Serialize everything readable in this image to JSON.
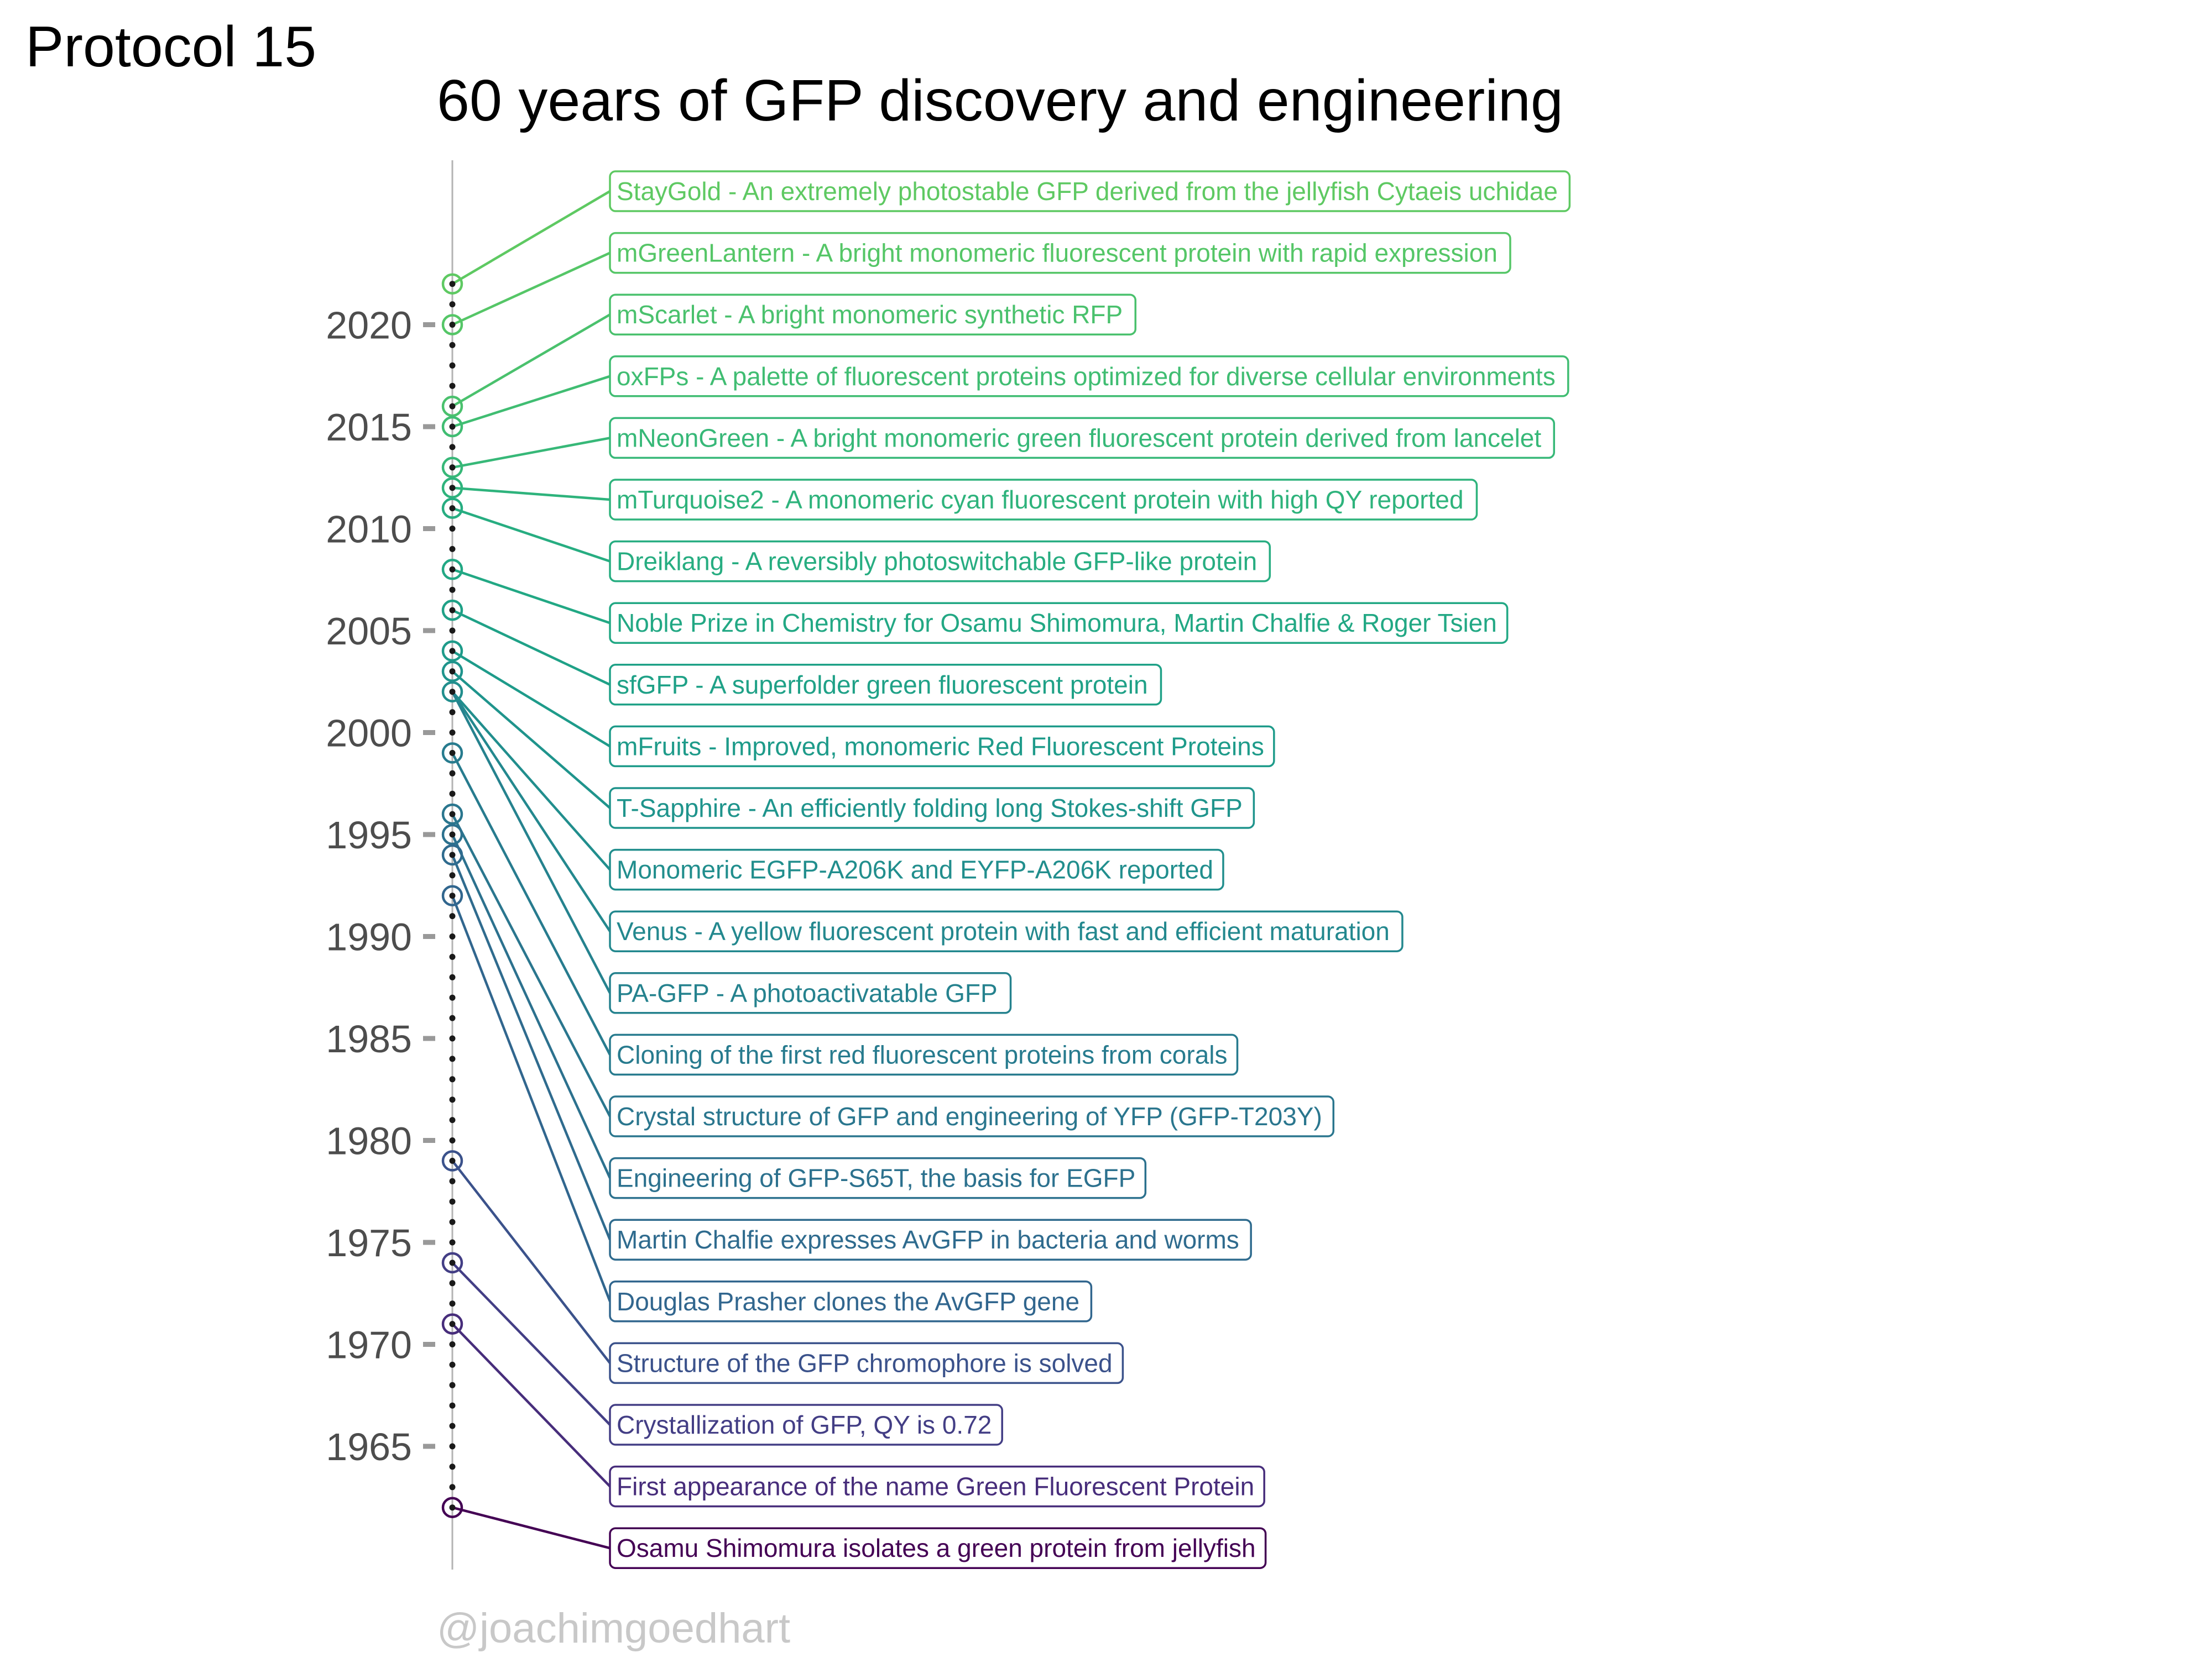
{
  "protocol_label": "Protocol 15",
  "watermark": "@joachimgoedhart",
  "chart_data": {
    "type": "timeline",
    "title": "60 years of GFP discovery and engineering",
    "xlabel": "",
    "ylabel": "",
    "ylim": [
      1960,
      2024
    ],
    "y_ticks": [
      1965,
      1970,
      1975,
      1980,
      1985,
      1990,
      1995,
      2000,
      2005,
      2010,
      2015,
      2020
    ],
    "grid": false,
    "events": [
      {
        "year": 2022,
        "label": "StayGold - An extremely photostable GFP derived from the jellyfish Cytaeis uchidae",
        "color": "#5ec962"
      },
      {
        "year": 2020,
        "label": "mGreenLantern - A bright monomeric fluorescent protein with rapid expression",
        "color": "#55c667"
      },
      {
        "year": 2016,
        "label": "mScarlet - A bright monomeric synthetic RFP",
        "color": "#4ac16d"
      },
      {
        "year": 2015,
        "label": "oxFPs - A palette of fluorescent proteins optimized for diverse cellular environments",
        "color": "#40bd72"
      },
      {
        "year": 2013,
        "label": "mNeonGreen - A bright monomeric green fluorescent protein derived from lancelet",
        "color": "#37b878"
      },
      {
        "year": 2012,
        "label": "mTurquoise2 - A monomeric cyan fluorescent protein with high QY reported",
        "color": "#2eb37c"
      },
      {
        "year": 2011,
        "label": "Dreiklang - A reversibly photoswitchable GFP-like protein",
        "color": "#27ad81"
      },
      {
        "year": 2008,
        "label": "Noble Prize in Chemistry for Osamu Shimomura, Martin Chalfie & Roger Tsien",
        "color": "#22a884"
      },
      {
        "year": 2006,
        "label": "sfGFP - A superfolder green fluorescent protein",
        "color": "#1fa187"
      },
      {
        "year": 2004,
        "label": "mFruits - Improved, monomeric Red Fluorescent Proteins",
        "color": "#1e9b8a"
      },
      {
        "year": 2003,
        "label": "T-Sapphire - An efficiently folding long Stokes-shift GFP",
        "color": "#1f948c"
      },
      {
        "year": 2002,
        "label": "Monomeric EGFP-A206K and EYFP-A206K reported",
        "color": "#218e8d"
      },
      {
        "year": 2002,
        "label": "Venus - A yellow fluorescent protein with fast and efficient maturation",
        "color": "#23888e"
      },
      {
        "year": 2002,
        "label": "PA-GFP - A photoactivatable GFP",
        "color": "#25828e"
      },
      {
        "year": 1999,
        "label": "Cloning of the first red fluorescent proteins from corals",
        "color": "#277b8e"
      },
      {
        "year": 1996,
        "label": "Crystal structure of GFP and engineering of YFP (GFP-T203Y)",
        "color": "#2a768e"
      },
      {
        "year": 1995,
        "label": "Engineering of GFP-S65T, the basis for EGFP",
        "color": "#2c718e"
      },
      {
        "year": 1994,
        "label": "Martin Chalfie expresses AvGFP in bacteria and worms",
        "color": "#2f6b8e"
      },
      {
        "year": 1992,
        "label": "Douglas Prasher clones the AvGFP gene",
        "color": "#31668e"
      },
      {
        "year": 1979,
        "label": "Structure of the GFP chromophore is solved",
        "color": "#3b528b"
      },
      {
        "year": 1974,
        "label": "Crystallization of GFP, QY is 0.72",
        "color": "#433e85"
      },
      {
        "year": 1971,
        "label": "First appearance of the name Green Fluorescent Protein",
        "color": "#472d7b"
      },
      {
        "year": 1962,
        "label": "Osamu Shimomura isolates a green protein from jellyfish",
        "color": "#440154"
      }
    ]
  }
}
